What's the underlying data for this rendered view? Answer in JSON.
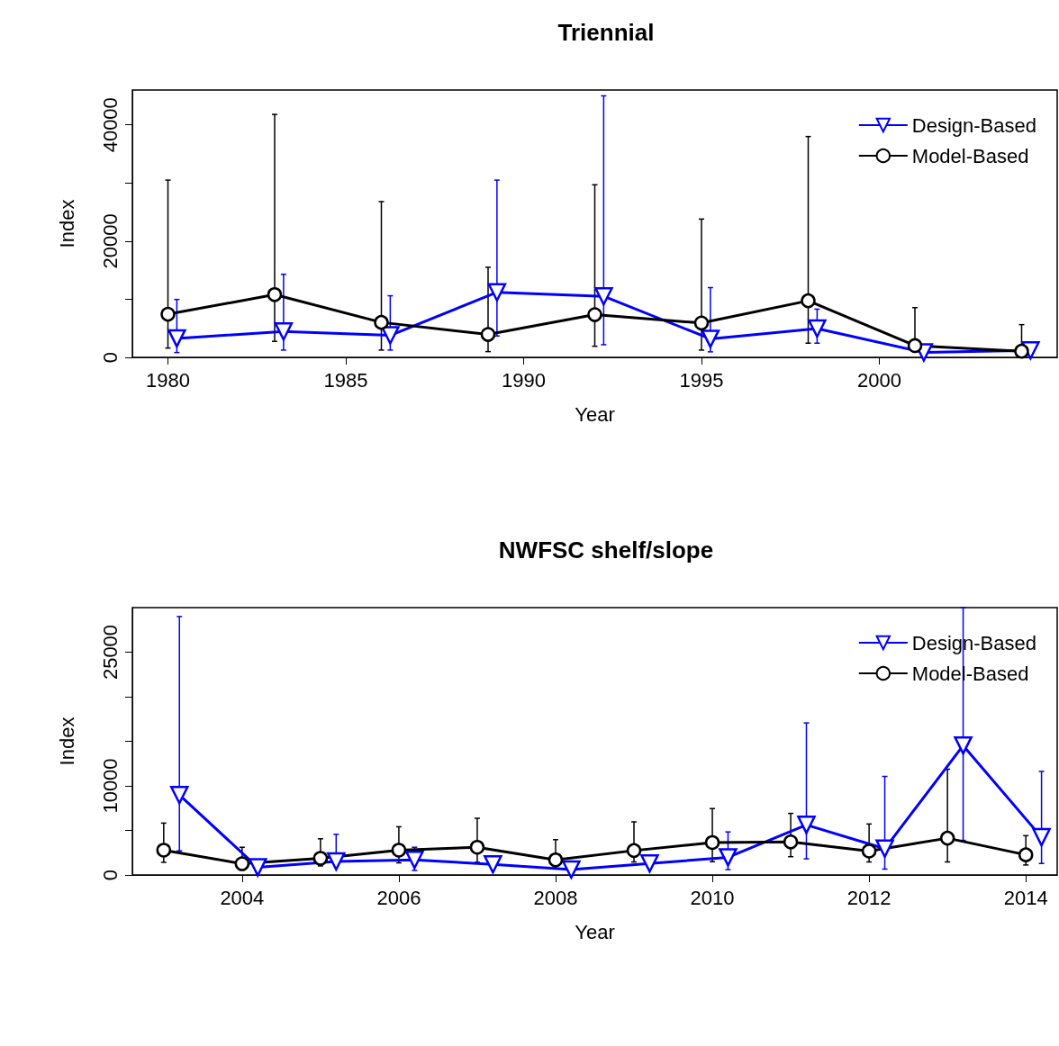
{
  "chart_data": [
    {
      "type": "line",
      "title": "Triennial",
      "xlabel": "Year",
      "ylabel": "Index",
      "xlim": [
        1979,
        2005
      ],
      "xticks": [
        1980,
        1985,
        1990,
        1995,
        2000
      ],
      "ylim": [
        0,
        46000
      ],
      "yticks": [
        0,
        {
          "value": 10000,
          "label": null
        },
        20000,
        {
          "value": 30000,
          "label": null
        },
        40000
      ],
      "legend": "top right",
      "grid": false,
      "series": [
        {
          "name": "Design-Based",
          "color": "#0000ff",
          "marker": "triangle",
          "x": [
            1980.25,
            1983.25,
            1986.25,
            1989.25,
            1992.25,
            1995.25,
            1998.25,
            2001.25,
            2004.25
          ],
          "values": [
            3270,
            4460,
            3790,
            11200,
            10500,
            3190,
            4950,
            860,
            1210
          ],
          "errors": [
            [
              830,
              9960
            ],
            [
              1250,
              14300
            ],
            [
              1250,
              10600
            ],
            [
              3680,
              30500
            ],
            [
              2180,
              45000
            ],
            [
              950,
              12000
            ],
            [
              2440,
              8300
            ],
            null,
            null
          ]
        },
        {
          "name": "Model-Based",
          "color": "#000000",
          "marker": "circle",
          "x": [
            1980,
            1983,
            1986,
            1989,
            1992,
            1995,
            1998,
            2001,
            2004
          ],
          "values": [
            7420,
            10800,
            6020,
            3940,
            7350,
            5910,
            9740,
            2020,
            1060
          ],
          "errors": [
            [
              1600,
              30500
            ],
            [
              2750,
              41800
            ],
            [
              1250,
              26800
            ],
            [
              990,
              15500
            ],
            [
              1910,
              29700
            ],
            [
              1250,
              23800
            ],
            [
              2440,
              38000
            ],
            [
              950,
              8560
            ],
            [
              150,
              5630
            ]
          ]
        }
      ]
    },
    {
      "type": "line",
      "title": "NWFSC shelf/slope",
      "xlabel": "Year",
      "ylabel": "Index",
      "xlim": [
        2002.6,
        2014.4
      ],
      "xticks": [
        2004,
        2006,
        2008,
        2010,
        2012,
        2014
      ],
      "ylim": [
        0,
        30000
      ],
      "yticks": [
        0,
        {
          "value": 5000,
          "label": null
        },
        10000,
        {
          "value": 15000,
          "label": null
        },
        {
          "value": 20000,
          "label": null
        },
        25000
      ],
      "legend": "top right",
      "grid": false,
      "series": [
        {
          "name": "Design-Based",
          "color": "#0000ff",
          "marker": "triangle",
          "x": [
            2003.2,
            2004.2,
            2005.2,
            2006.2,
            2007.2,
            2008.2,
            2009.2,
            2010.2,
            2011.2,
            2012.2,
            2013.2,
            2014.2
          ],
          "values": [
            8970,
            850,
            1520,
            1690,
            1190,
            610,
            1290,
            1980,
            5620,
            2950,
            14530,
            4230
          ],
          "errors": [
            [
              2710,
              29000
            ],
            null,
            [
              1000,
              4560
            ],
            [
              510,
              3110
            ],
            null,
            null,
            null,
            [
              600,
              4830
            ],
            [
              1810,
              17060
            ],
            [
              660,
              11060
            ],
            [
              3880,
              30000
            ],
            [
              1290,
              11620
            ]
          ]
        },
        {
          "name": "Model-Based",
          "color": "#000000",
          "marker": "circle",
          "x": [
            2003,
            2004,
            2005,
            2006,
            2007,
            2008,
            2009,
            2010,
            2011,
            2012,
            2013,
            2014
          ],
          "values": [
            2780,
            1260,
            1870,
            2780,
            3110,
            1690,
            2740,
            3640,
            3710,
            2680,
            4130,
            2260
          ],
          "errors": [
            [
              1420,
              5820
            ],
            [
              680,
              3110
            ],
            [
              1010,
              4060
            ],
            [
              1360,
              5410
            ],
            [
              1420,
              6360
            ],
            [
              680,
              3960
            ],
            [
              1460,
              5960
            ],
            [
              1490,
              7450
            ],
            [
              2050,
              6910
            ],
            [
              1460,
              5720
            ],
            [
              1460,
              11870
            ],
            [
              1120,
              4410
            ]
          ]
        }
      ]
    }
  ]
}
